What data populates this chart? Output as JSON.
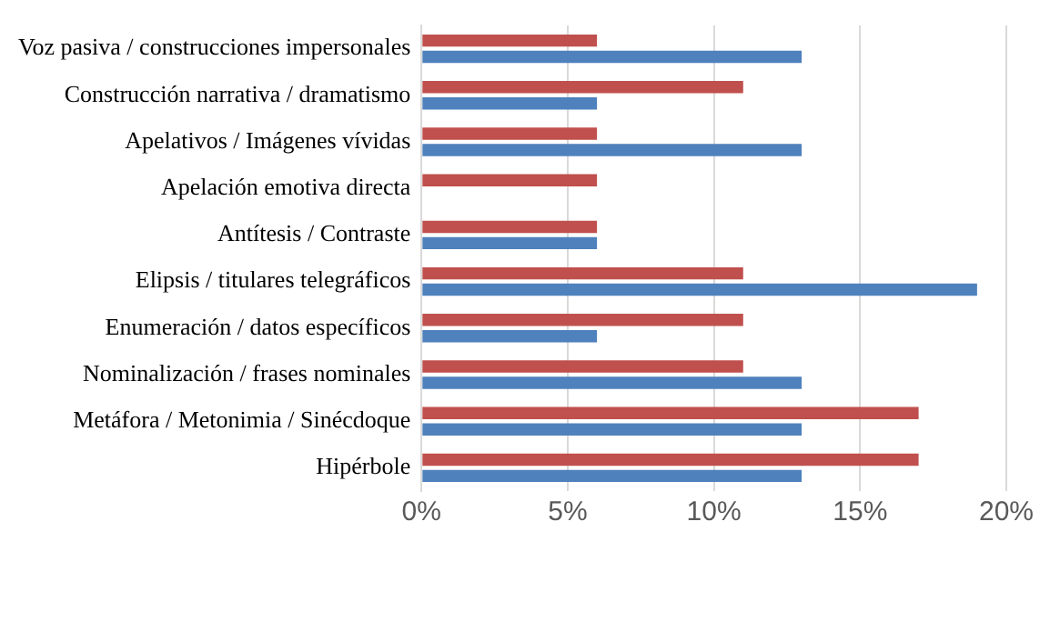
{
  "chart_data": {
    "type": "bar",
    "orientation": "horizontal",
    "categories": [
      "Voz pasiva / construcciones impersonales",
      "Construcción narrativa / dramatismo",
      "Apelativos / Imágenes vívidas",
      "Apelación emotiva directa",
      "Antítesis / Contraste",
      "Elipsis / titulares telegráficos",
      "Enumeración / datos específicos",
      "Nominalización / frases nominales",
      "Metáfora / Metonimia / Sinécdoque",
      "Hipérbole"
    ],
    "series": [
      {
        "color": "#c0504d",
        "values": [
          6,
          11,
          6,
          6,
          6,
          11,
          11,
          11,
          17,
          17
        ]
      },
      {
        "color": "#4f81bd",
        "values": [
          13,
          6,
          13,
          0,
          6,
          19,
          6,
          13,
          13,
          13
        ]
      }
    ],
    "xlim": [
      0,
      20
    ],
    "xticks": [
      {
        "value": 0,
        "label": "0%"
      },
      {
        "value": 5,
        "label": "5%"
      },
      {
        "value": 10,
        "label": "10%"
      },
      {
        "value": 15,
        "label": "15%"
      },
      {
        "value": 20,
        "label": "20%"
      }
    ],
    "grid": "x",
    "legend": false
  }
}
